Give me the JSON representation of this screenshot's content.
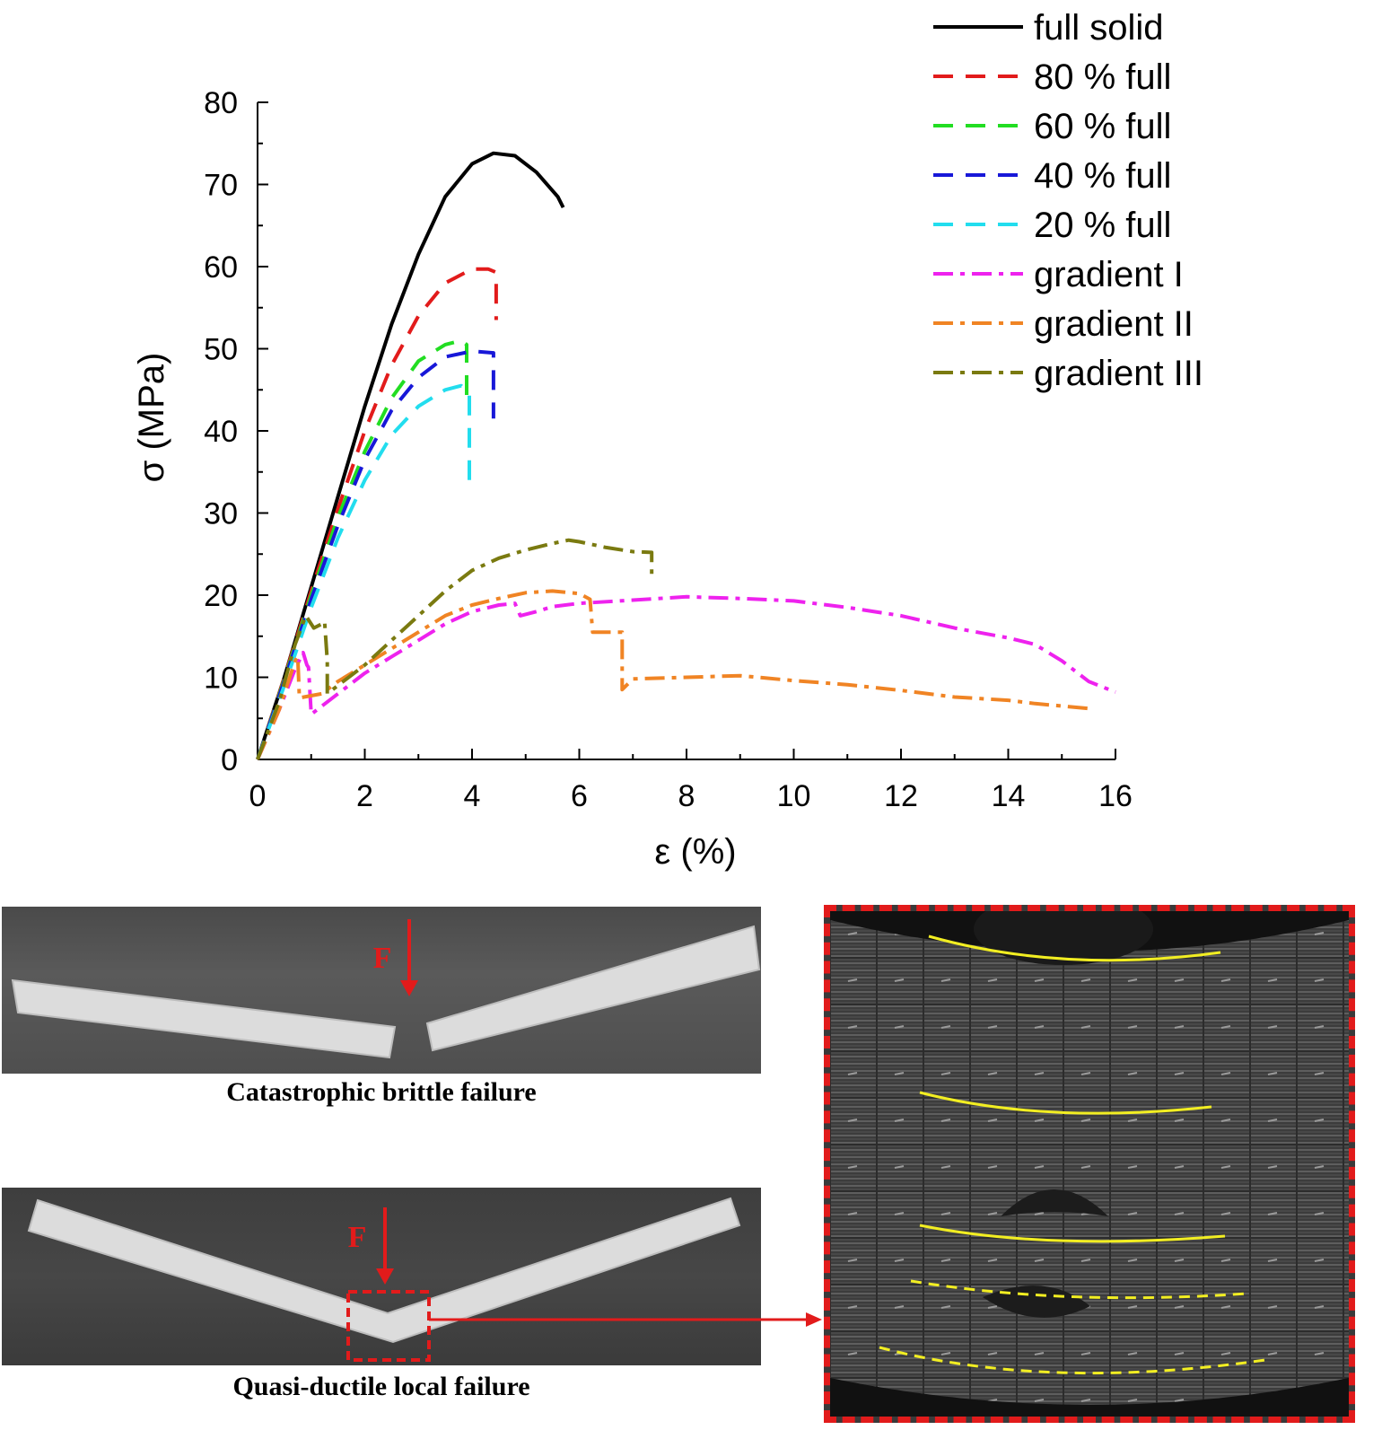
{
  "chart_data": {
    "type": "line",
    "xlabel": "ε (%)",
    "ylabel": "σ (MPa)",
    "xlim": [
      0,
      16
    ],
    "ylim": [
      0,
      80
    ],
    "xticks": [
      "0",
      "2",
      "4",
      "6",
      "8",
      "10",
      "12",
      "14",
      "16"
    ],
    "yticks": [
      "0",
      "10",
      "20",
      "30",
      "40",
      "50",
      "60",
      "70",
      "80"
    ],
    "legend_position": "top-right",
    "grid": false,
    "series": [
      {
        "name": "full solid",
        "color": "#000000",
        "dash": "solid",
        "points": [
          [
            0,
            0
          ],
          [
            0.5,
            10
          ],
          [
            1,
            21
          ],
          [
            1.5,
            32
          ],
          [
            2,
            43
          ],
          [
            2.5,
            53
          ],
          [
            3,
            61.5
          ],
          [
            3.5,
            68.5
          ],
          [
            4,
            72.5
          ],
          [
            4.4,
            73.8
          ],
          [
            4.8,
            73.5
          ],
          [
            5.2,
            71.5
          ],
          [
            5.6,
            68.5
          ],
          [
            5.7,
            67.2
          ]
        ]
      },
      {
        "name": "80 % full",
        "color": "#e21b1b",
        "dash": "dash",
        "points": [
          [
            0,
            0
          ],
          [
            0.5,
            10
          ],
          [
            1,
            20.5
          ],
          [
            1.5,
            30.5
          ],
          [
            2,
            40
          ],
          [
            2.5,
            48
          ],
          [
            3,
            54
          ],
          [
            3.5,
            58
          ],
          [
            4,
            59.7
          ],
          [
            4.3,
            59.7
          ],
          [
            4.45,
            59.3
          ],
          [
            4.45,
            53.5
          ]
        ]
      },
      {
        "name": "60 % full",
        "color": "#22dd22",
        "dash": "dash",
        "points": [
          [
            0,
            0
          ],
          [
            0.5,
            9.8
          ],
          [
            1,
            20
          ],
          [
            1.5,
            29.5
          ],
          [
            2,
            37.5
          ],
          [
            2.5,
            44
          ],
          [
            3,
            48.5
          ],
          [
            3.5,
            50.5
          ],
          [
            3.8,
            51
          ],
          [
            3.9,
            50.5
          ],
          [
            3.9,
            44
          ]
        ]
      },
      {
        "name": "40 % full",
        "color": "#1818d8",
        "dash": "dash",
        "points": [
          [
            0,
            0
          ],
          [
            0.5,
            9.6
          ],
          [
            1,
            19.5
          ],
          [
            1.5,
            28.5
          ],
          [
            2,
            36.5
          ],
          [
            2.5,
            42.5
          ],
          [
            3,
            46.5
          ],
          [
            3.5,
            49
          ],
          [
            4,
            49.7
          ],
          [
            4.4,
            49.5
          ],
          [
            4.4,
            41.5
          ]
        ]
      },
      {
        "name": "20 % full",
        "color": "#22ddee",
        "dash": "dash",
        "points": [
          [
            0,
            0
          ],
          [
            0.5,
            9
          ],
          [
            1,
            18.5
          ],
          [
            1.5,
            27
          ],
          [
            2,
            34
          ],
          [
            2.5,
            39.5
          ],
          [
            3,
            43
          ],
          [
            3.5,
            45
          ],
          [
            3.8,
            45.5
          ],
          [
            3.95,
            44.5
          ],
          [
            3.95,
            33
          ]
        ]
      },
      {
        "name": "gradient I",
        "color": "#ee22ee",
        "dash": "dashdot",
        "points": [
          [
            0,
            0
          ],
          [
            0.4,
            6
          ],
          [
            0.7,
            11
          ],
          [
            0.85,
            13
          ],
          [
            0.92,
            11.5
          ],
          [
            0.95,
            11.2
          ],
          [
            1,
            5.5
          ],
          [
            1.5,
            8
          ],
          [
            2,
            10.5
          ],
          [
            2.5,
            12.5
          ],
          [
            3,
            14.5
          ],
          [
            3.5,
            16.5
          ],
          [
            4,
            18
          ],
          [
            4.5,
            18.8
          ],
          [
            4.8,
            19
          ],
          [
            4.9,
            17.5
          ],
          [
            5.2,
            18
          ],
          [
            5.5,
            18.6
          ],
          [
            6,
            19
          ],
          [
            7,
            19.4
          ],
          [
            8,
            19.8
          ],
          [
            9,
            19.6
          ],
          [
            10,
            19.3
          ],
          [
            11,
            18.5
          ],
          [
            12,
            17.5
          ],
          [
            13,
            16
          ],
          [
            14,
            14.8
          ],
          [
            14.5,
            14
          ],
          [
            15,
            12
          ],
          [
            15.5,
            9.5
          ],
          [
            16,
            8.2
          ]
        ]
      },
      {
        "name": "gradient II",
        "color": "#f08424",
        "dash": "dashdot",
        "points": [
          [
            0,
            0
          ],
          [
            0.4,
            6
          ],
          [
            0.7,
            12
          ],
          [
            0.75,
            12.5
          ],
          [
            0.78,
            7.5
          ],
          [
            1.2,
            8
          ],
          [
            1.5,
            9.5
          ],
          [
            2,
            11.5
          ],
          [
            2.5,
            13.5
          ],
          [
            3,
            15.5
          ],
          [
            3.5,
            17.5
          ],
          [
            4,
            18.8
          ],
          [
            4.5,
            19.6
          ],
          [
            5,
            20.3
          ],
          [
            5.5,
            20.5
          ],
          [
            6,
            20.2
          ],
          [
            6.2,
            19.5
          ],
          [
            6.25,
            15.5
          ],
          [
            6.8,
            15.5
          ],
          [
            6.8,
            8.5
          ],
          [
            7,
            9.8
          ],
          [
            8,
            10
          ],
          [
            9,
            10.2
          ],
          [
            10,
            9.6
          ],
          [
            11,
            9.1
          ],
          [
            12,
            8.4
          ],
          [
            13,
            7.6
          ],
          [
            14,
            7.2
          ],
          [
            14.5,
            6.8
          ],
          [
            15,
            6.5
          ],
          [
            15.5,
            6.2
          ]
        ]
      },
      {
        "name": "gradient III",
        "color": "#7a7a10",
        "dash": "dashdot",
        "points": [
          [
            0,
            0
          ],
          [
            0.4,
            7
          ],
          [
            0.7,
            14
          ],
          [
            0.9,
            17.5
          ],
          [
            1.05,
            16
          ],
          [
            1.2,
            16.5
          ],
          [
            1.25,
            16.8
          ],
          [
            1.3,
            12
          ],
          [
            1.3,
            8
          ],
          [
            1.5,
            9
          ],
          [
            2,
            11.5
          ],
          [
            2.5,
            14.5
          ],
          [
            3,
            17.5
          ],
          [
            3.5,
            20.5
          ],
          [
            4,
            23
          ],
          [
            4.5,
            24.5
          ],
          [
            5,
            25.5
          ],
          [
            5.5,
            26.3
          ],
          [
            5.8,
            26.7
          ],
          [
            6,
            26.5
          ],
          [
            6.5,
            25.8
          ],
          [
            7,
            25.3
          ],
          [
            7.35,
            25.2
          ],
          [
            7.35,
            22.5
          ]
        ]
      }
    ]
  },
  "panels": {
    "brittle_caption": "Catastrophic brittle failure",
    "ductile_caption": "Quasi-ductile local failure",
    "force_label_top": "F",
    "force_label_bottom": "F"
  }
}
